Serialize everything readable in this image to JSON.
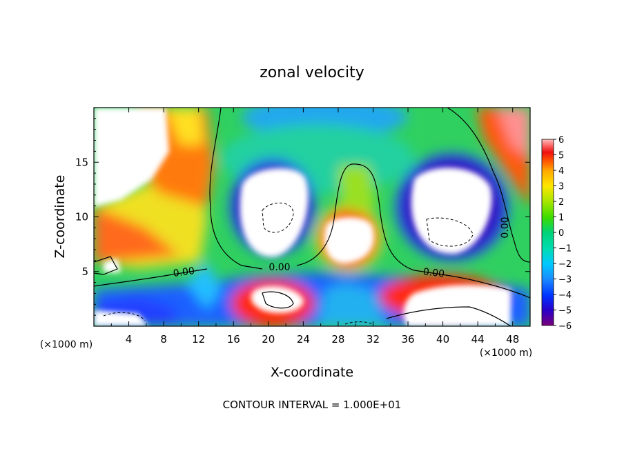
{
  "chart_data": {
    "type": "heatmap",
    "title": "zonal velocity",
    "xlabel": "X-coordinate",
    "ylabel": "Z-coordinate",
    "x_unit_note": "(×1000 m)",
    "y_unit_note": "(×1000 m)",
    "footer": "CONTOUR INTERVAL = 1.000E+01",
    "xlim": [
      0,
      50
    ],
    "ylim": [
      0,
      20
    ],
    "x_ticks": [
      "4",
      "8",
      "12",
      "16",
      "20",
      "24",
      "28",
      "32",
      "36",
      "40",
      "44",
      "48"
    ],
    "y_ticks": [
      "5",
      "10",
      "15"
    ],
    "colorbar": {
      "labels": [
        "6",
        "5",
        "4",
        "3",
        "2",
        "1",
        "0",
        "−1",
        "−2",
        "−3",
        "−4",
        "−5",
        "−6"
      ],
      "range": [
        -6,
        6
      ],
      "colors": [
        "#7a007a",
        "#2b00c8",
        "#0033ff",
        "#1a8cff",
        "#00c8ff",
        "#00dcb4",
        "#00d278",
        "#3cdc00",
        "#a0e600",
        "#ffe600",
        "#ffaa00",
        "#ff5a00",
        "#ee1111",
        "#ff6e6e",
        "#ffc0c0"
      ]
    },
    "contour_labels": [
      "0.00",
      "0.00",
      "0.00",
      "0.00"
    ]
  }
}
